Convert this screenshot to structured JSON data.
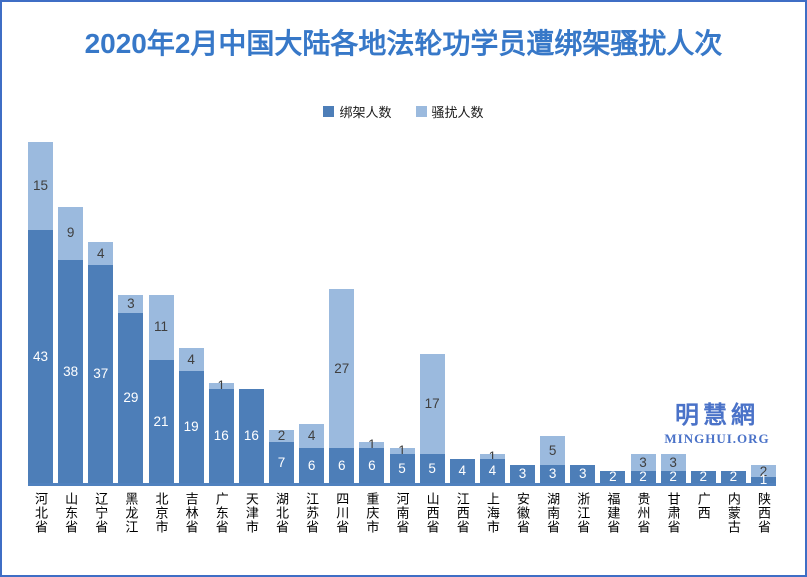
{
  "title": "2020年2月中国大陆各地法轮功学员遭绑架骚扰人次",
  "watermark": {
    "site_name_cn": "明慧網",
    "site_name_en": "MINGHUI.ORG"
  },
  "colors": {
    "kidnap_series": "#4d7eb8",
    "harass_series": "#9bbade",
    "title_text": "#3778c8",
    "axis_line": "#5081be",
    "watermark_text": "#4a72c8",
    "frame_border": "#3f6ec5",
    "dark_value_text": "#ffffff",
    "light_value_text": "#3f3f3f"
  },
  "chart_data": {
    "type": "bar",
    "stacked": true,
    "title": "2020年2月中国大陆各地法轮功学员遭绑架骚扰人次",
    "categories": [
      "河北省",
      "山东省",
      "辽宁省",
      "黑龙江",
      "北京市",
      "吉林省",
      "广东省",
      "天津市",
      "湖北省",
      "江苏省",
      "四川省",
      "重庆市",
      "河南省",
      "山西省",
      "江西省",
      "上海市",
      "安徽省",
      "湖南省",
      "浙江省",
      "福建省",
      "贵州省",
      "甘肃省",
      "广西",
      "内蒙古",
      "陕西省"
    ],
    "series": [
      {
        "name": "绑架人数",
        "color": "#4d7eb8",
        "values": [
          43,
          38,
          37,
          29,
          21,
          19,
          16,
          16,
          7,
          6,
          6,
          6,
          5,
          5,
          4,
          4,
          3,
          3,
          3,
          2,
          2,
          2,
          2,
          2,
          1
        ]
      },
      {
        "name": "骚扰人数",
        "color": "#9bbade",
        "values": [
          15,
          9,
          4,
          3,
          11,
          4,
          1,
          0,
          2,
          4,
          27,
          1,
          1,
          17,
          0,
          1,
          0,
          5,
          0,
          0,
          3,
          3,
          0,
          0,
          2
        ]
      }
    ],
    "ylim": [
      0,
      58
    ],
    "grid": false,
    "legend_position": "top-center",
    "value_labels": "centered in each segment, hidden when value is 0",
    "xlabel": "",
    "ylabel": ""
  }
}
